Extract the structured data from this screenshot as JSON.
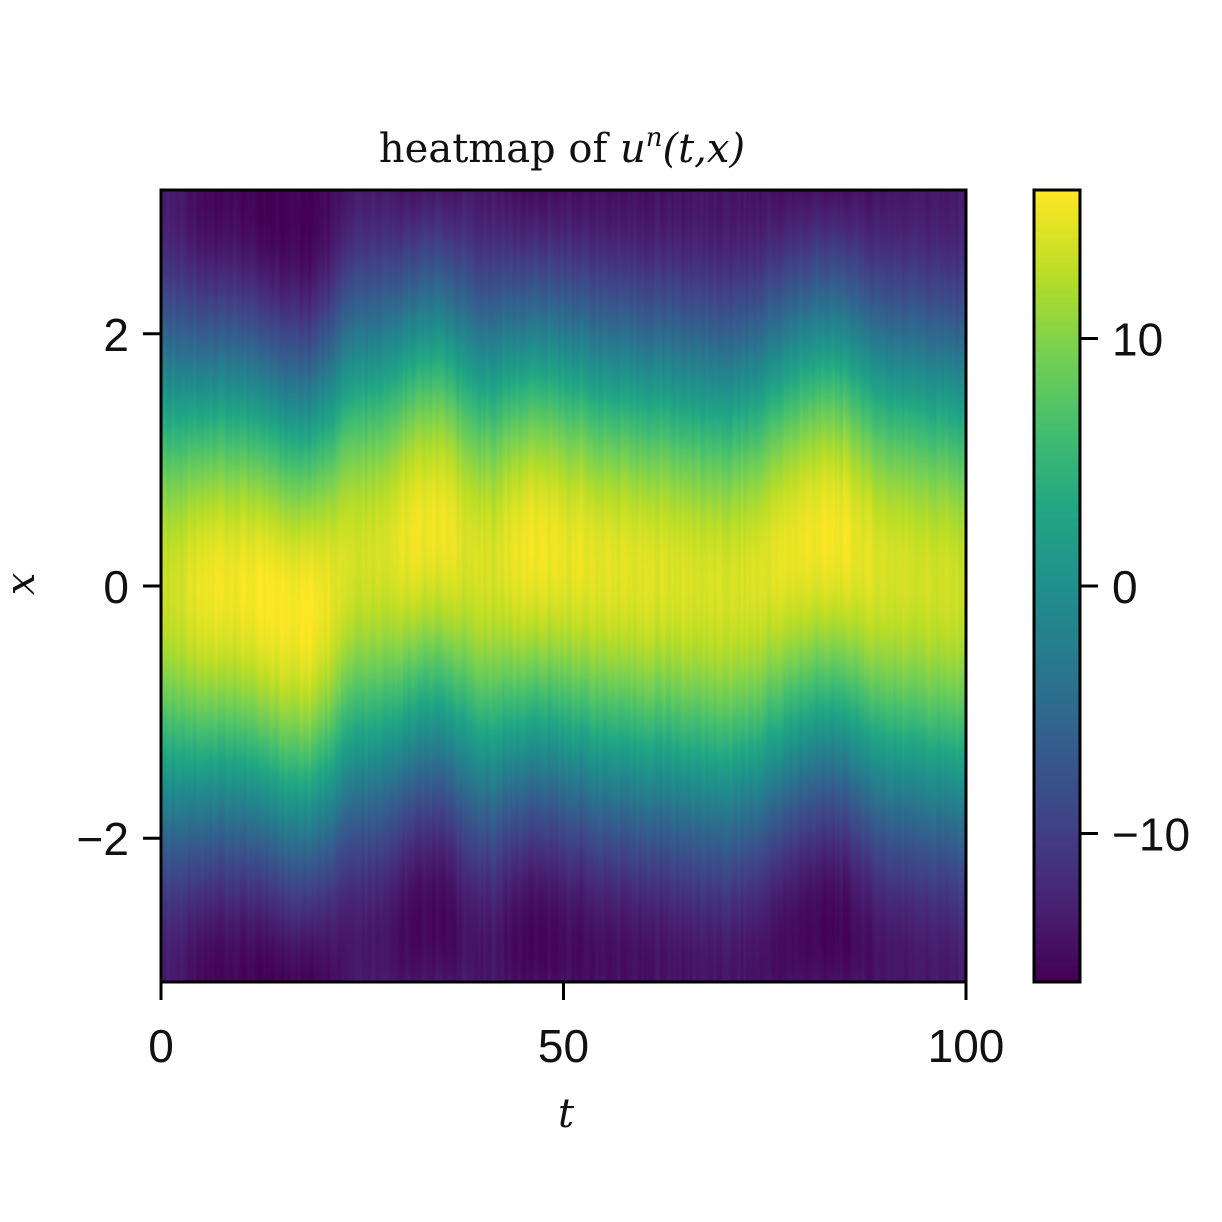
{
  "chart_data": {
    "type": "heatmap",
    "title": {
      "prefix": "heatmap of ",
      "var": "u",
      "sup": "n",
      "args": "(t,x)"
    },
    "xlabel": "t",
    "ylabel": "x",
    "xlim": [
      0,
      100
    ],
    "ylim": [
      -3.14,
      3.14
    ],
    "xticks": [
      0,
      50,
      100
    ],
    "xtick_labels": [
      "0",
      "50",
      "100"
    ],
    "yticks": [
      -2,
      0,
      2
    ],
    "ytick_labels": [
      "−2",
      "0",
      "2"
    ],
    "colorbar": {
      "colormap": "viridis",
      "range": [
        -16,
        16
      ],
      "ticks": [
        -10,
        0,
        10
      ],
      "tick_labels": [
        "−10",
        "0",
        "10"
      ]
    },
    "field_description": {
      "form": "amplitude(t) * cos(x - shift(t))",
      "amplitude_keyframes": [
        {
          "t": 0,
          "a": 13.5
        },
        {
          "t": 8,
          "a": 15.5
        },
        {
          "t": 18,
          "a": 16
        },
        {
          "t": 25,
          "a": 14
        },
        {
          "t": 34,
          "a": 15.5
        },
        {
          "t": 40,
          "a": 14
        },
        {
          "t": 46,
          "a": 15.5
        },
        {
          "t": 50,
          "a": 15
        },
        {
          "t": 60,
          "a": 14.5
        },
        {
          "t": 70,
          "a": 14
        },
        {
          "t": 83,
          "a": 15.5
        },
        {
          "t": 92,
          "a": 14
        },
        {
          "t": 100,
          "a": 13.5
        }
      ],
      "shift_keyframes": [
        {
          "t": 0,
          "s": 0.0
        },
        {
          "t": 8,
          "s": 0.0
        },
        {
          "t": 18,
          "s": -0.2
        },
        {
          "t": 25,
          "s": 0.2
        },
        {
          "t": 34,
          "s": 0.45
        },
        {
          "t": 40,
          "s": 0.2
        },
        {
          "t": 46,
          "s": 0.3
        },
        {
          "t": 60,
          "s": 0.1
        },
        {
          "t": 70,
          "s": 0.0
        },
        {
          "t": 83,
          "s": 0.4
        },
        {
          "t": 92,
          "s": 0.1
        },
        {
          "t": 100,
          "s": 0.0
        }
      ]
    }
  }
}
